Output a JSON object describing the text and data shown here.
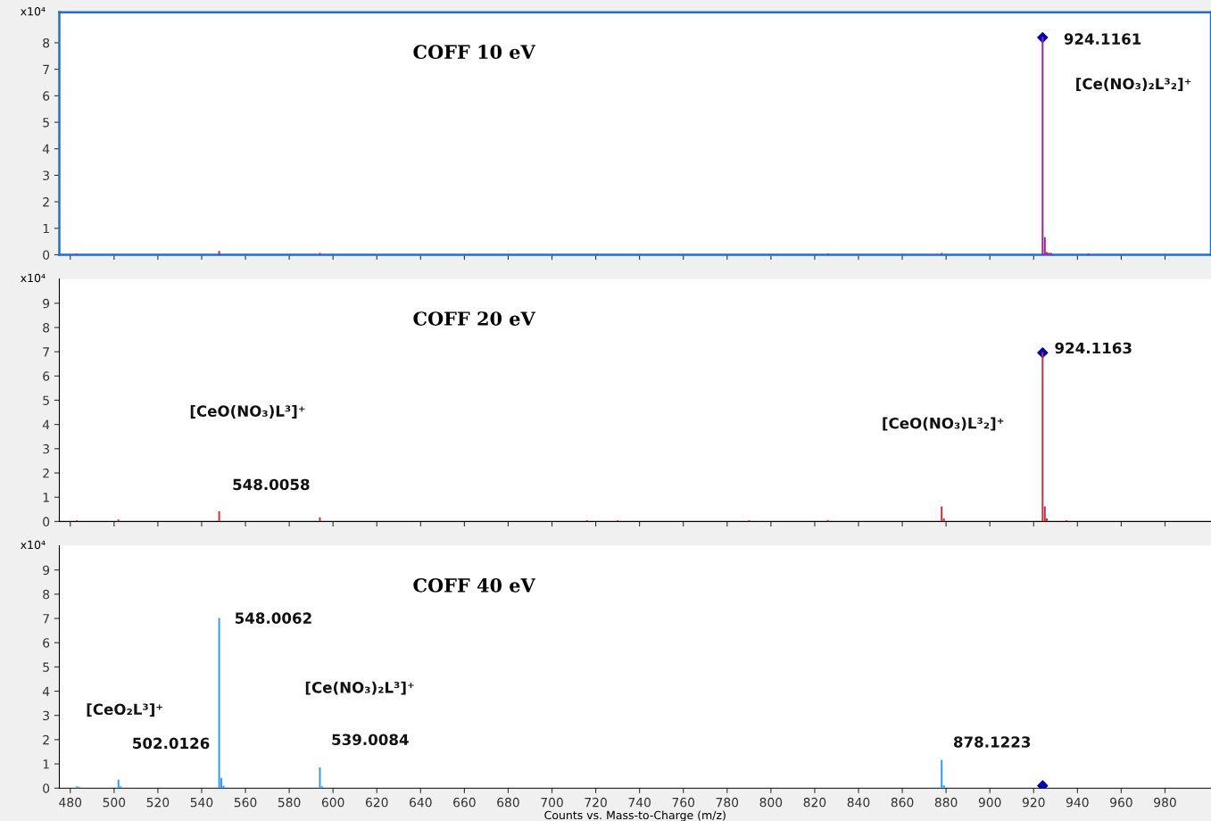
{
  "chart_data": [
    {
      "type": "bar",
      "title": "COFF 10 eV",
      "ylabel": "x10⁴",
      "xlim": [
        475,
        1001
      ],
      "xticks": [
        480,
        500,
        520,
        540,
        560,
        580,
        600,
        620,
        640,
        660,
        680,
        700,
        720,
        740,
        760,
        780,
        800,
        820,
        840,
        860,
        880,
        900,
        920,
        940,
        960,
        980
      ],
      "ylim": [
        0,
        9.15
      ],
      "yticks": [
        0,
        1,
        2,
        3,
        4,
        5,
        6,
        7,
        8
      ],
      "tick_labels": "y",
      "grid": false,
      "series": [
        {
          "color": "#a3219b",
          "x": [
            483,
            548,
            594,
            826,
            878,
            924.1,
            925.1,
            926,
            927,
            928,
            945
          ],
          "values": [
            0.02,
            0.12,
            0.05,
            0.03,
            0.05,
            8.2,
            0.65,
            0.08,
            0.06,
            0.05,
            0.03
          ]
        },
        {
          "type": "scatter",
          "marker": "diamond",
          "color": "#0000b0",
          "x": [
            924.1
          ],
          "values": [
            8.2
          ]
        }
      ],
      "annotations": [
        "924.1161",
        "[Ce(NO₃)₂L³₂]⁺"
      ]
    },
    {
      "type": "bar",
      "title": "COFF 20 eV",
      "ylabel": "x10⁴",
      "xlim": [
        475,
        1001
      ],
      "xticks": [
        480,
        500,
        520,
        540,
        560,
        580,
        600,
        620,
        640,
        660,
        680,
        700,
        720,
        740,
        760,
        780,
        800,
        820,
        840,
        860,
        880,
        900,
        920,
        940,
        960,
        980
      ],
      "ylim": [
        0,
        10
      ],
      "yticks": [
        0,
        1,
        2,
        3,
        4,
        5,
        6,
        7,
        8,
        9
      ],
      "tick_labels": "y",
      "grid": false,
      "series": [
        {
          "color": "#c8303a",
          "x": [
            483,
            502,
            548,
            594,
            716,
            730,
            790,
            826,
            878,
            879,
            924.1,
            925.1,
            926,
            935
          ],
          "values": [
            0.03,
            0.06,
            0.4,
            0.15,
            0.03,
            0.03,
            0.03,
            0.04,
            0.6,
            0.1,
            6.96,
            0.6,
            0.1,
            0.03
          ]
        },
        {
          "type": "scatter",
          "marker": "diamond",
          "color": "#0000b0",
          "x": [
            924.1
          ],
          "values": [
            6.96
          ]
        }
      ],
      "annotations": [
        "924.1163",
        "[CeO(NO₃)L³₂]⁺",
        "[CeO(NO₃)L³]⁺",
        "548.0058"
      ]
    },
    {
      "type": "bar",
      "title": "COFF 40 eV",
      "ylabel": "x10⁴",
      "xlabel": "Counts vs. Mass-to-Charge (m/z)",
      "xlim": [
        475,
        1001
      ],
      "xticks": [
        480,
        500,
        520,
        540,
        560,
        580,
        600,
        620,
        640,
        660,
        680,
        700,
        720,
        740,
        760,
        780,
        800,
        820,
        840,
        860,
        880,
        900,
        920,
        940,
        960,
        980
      ],
      "ylim": [
        0,
        10
      ],
      "yticks": [
        0,
        1,
        2,
        3,
        4,
        5,
        6,
        7,
        8,
        9
      ],
      "grid": false,
      "series": [
        {
          "color": "#3399ff",
          "x": [
            483,
            484,
            502,
            503,
            548,
            549,
            550,
            594,
            595,
            878,
            879
          ],
          "values": [
            0.05,
            0.03,
            0.33,
            0.05,
            7.0,
            0.4,
            0.08,
            0.83,
            0.05,
            1.15,
            0.1
          ]
        },
        {
          "type": "scatter",
          "marker": "diamond",
          "color": "#0000b0",
          "x": [
            924.1
          ],
          "values": [
            0.1
          ]
        }
      ],
      "annotations": [
        "548.0062",
        "[CeO₂L³]⁺",
        "502.0126",
        "[Ce(NO₃)₂L³]⁺",
        "539.0084",
        "878.1223"
      ]
    }
  ]
}
